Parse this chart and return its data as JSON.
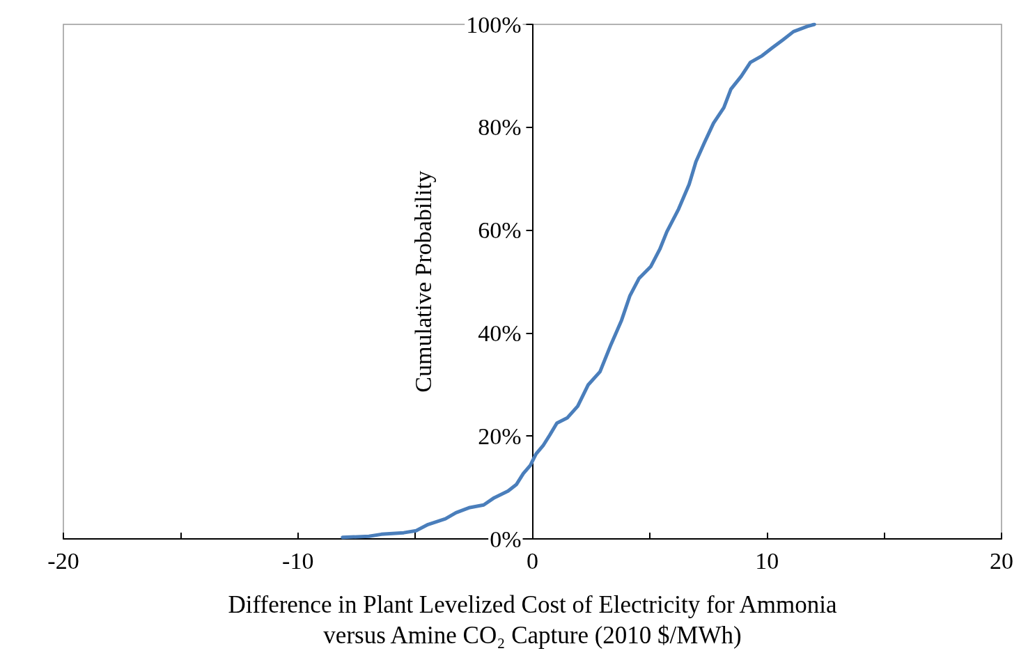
{
  "chart_data": {
    "type": "line",
    "xlabel": "Difference in Plant Levelized Cost of Electricity for Ammonia\nversus Amine CO₂ Capture (2010 $/MWh)",
    "ylabel": "Cumulative Probability",
    "x": [
      -8.1,
      -6.97,
      -6.44,
      -5.49,
      -4.96,
      -4.45,
      -3.71,
      -3.26,
      -2.67,
      -2.08,
      -1.63,
      -1.04,
      -0.68,
      -0.39,
      -0.09,
      0.15,
      0.45,
      0.74,
      1.04,
      1.48,
      1.93,
      2.37,
      2.88,
      3.35,
      3.8,
      4.15,
      4.54,
      5.04,
      5.43,
      5.73,
      6.23,
      6.68,
      6.97,
      7.33,
      7.72,
      8.16,
      8.46,
      8.9,
      9.29,
      9.79,
      10.24,
      10.68,
      11.13,
      11.72,
      12.02
    ],
    "series": [
      {
        "color": "#4a7ebb",
        "values": [
          0.3,
          0.5,
          0.9,
          1.2,
          1.6,
          2.8,
          3.9,
          5.1,
          6.1,
          6.6,
          8,
          9.3,
          10.6,
          12.7,
          14.3,
          16.5,
          18.1,
          20.2,
          22.5,
          23.5,
          25.8,
          29.9,
          32.5,
          37.8,
          42.5,
          47.2,
          50.6,
          52.9,
          56.3,
          59.7,
          64.1,
          68.9,
          73.3,
          77,
          80.8,
          83.8,
          87.4,
          89.9,
          92.6,
          93.9,
          95.5,
          97,
          98.6,
          99.6,
          100
        ]
      }
    ],
    "xlim": [
      -20,
      20
    ],
    "xticks": [
      -20,
      {
        "value": -15,
        "label": null
      },
      -10,
      {
        "value": -5,
        "label": null
      },
      0,
      {
        "value": 5,
        "label": null
      },
      10,
      {
        "value": 15,
        "label": null
      },
      20
    ],
    "ylim": [
      0,
      100
    ],
    "yticks": [
      {
        "value": 0,
        "label": "0%"
      },
      {
        "value": 20,
        "label": "20%"
      },
      {
        "value": 40,
        "label": "40%"
      },
      {
        "value": 60,
        "label": "60%"
      },
      {
        "value": 80,
        "label": "80%"
      },
      {
        "value": 100,
        "label": "100%"
      }
    ],
    "grid": false,
    "marker": "none",
    "line_style": "solid"
  }
}
